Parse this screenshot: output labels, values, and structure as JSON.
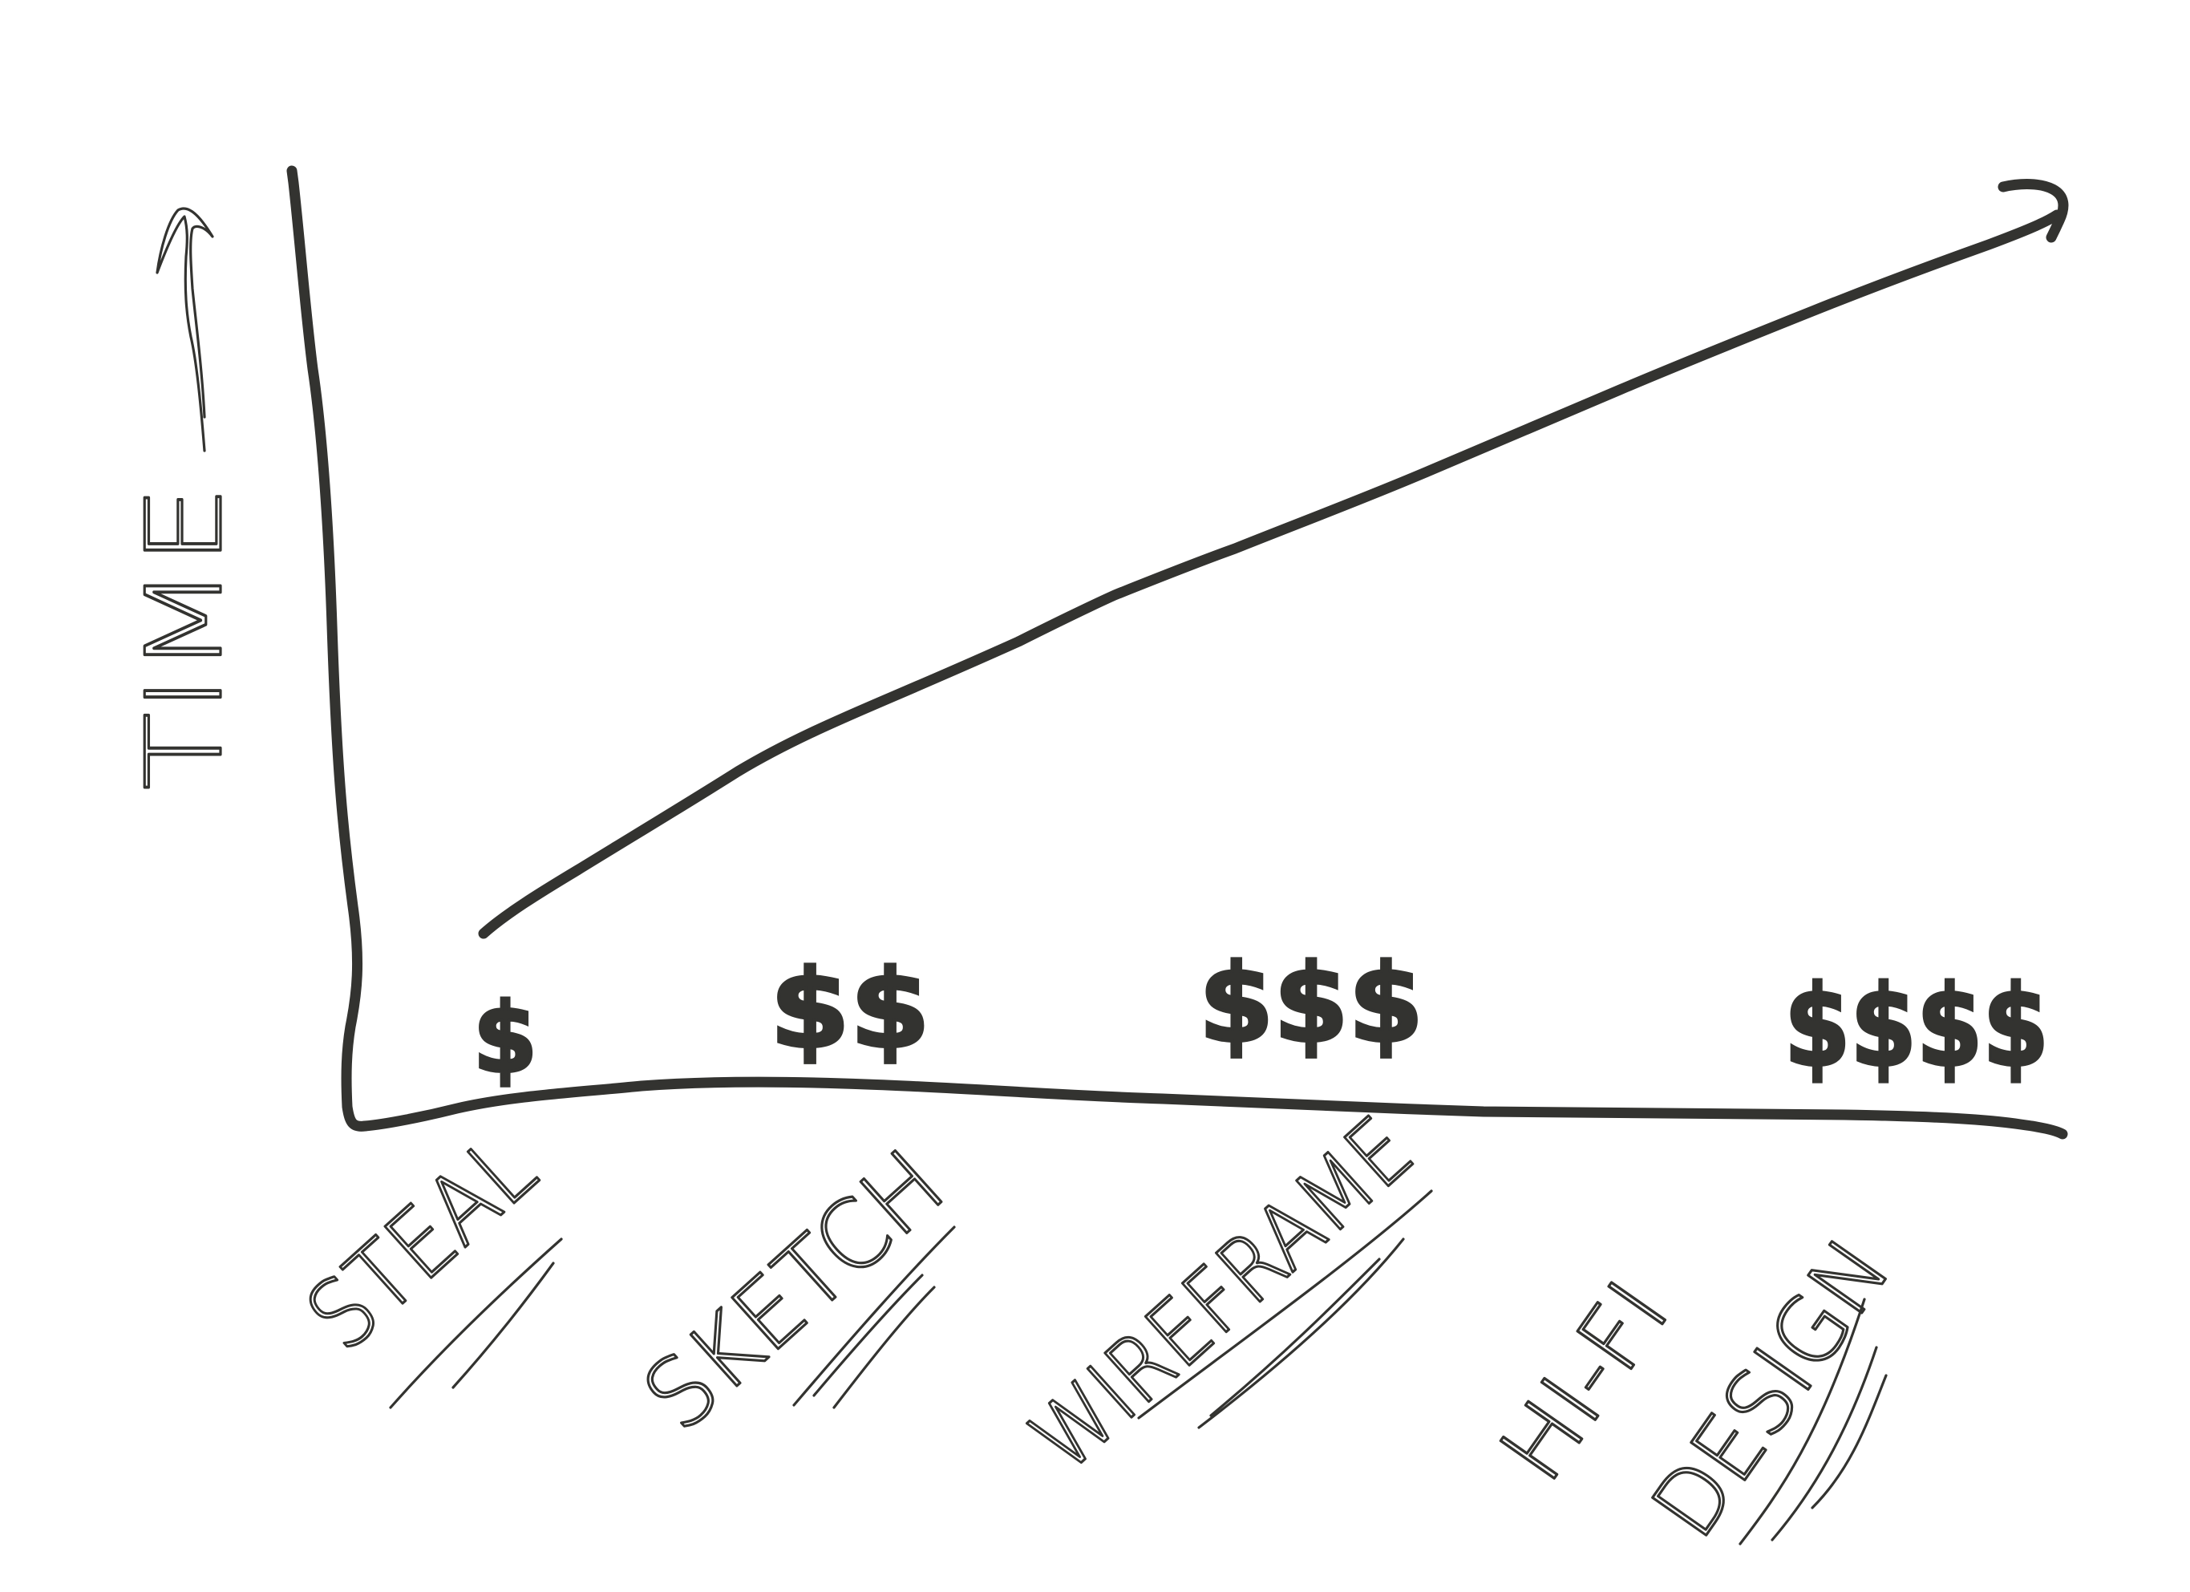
{
  "diagram": {
    "y_axis": {
      "label": "TIME"
    },
    "stages": [
      {
        "id": "steal",
        "label": "STEAL",
        "cost": "$"
      },
      {
        "id": "sketch",
        "label": "SKETCH",
        "cost": "$$"
      },
      {
        "id": "wireframe",
        "label": "WIREFRAME",
        "cost": "$$$"
      },
      {
        "id": "hifi",
        "label_line1": "HI-FI",
        "label_line2": "DESIGN",
        "cost": "$$$$"
      }
    ]
  }
}
